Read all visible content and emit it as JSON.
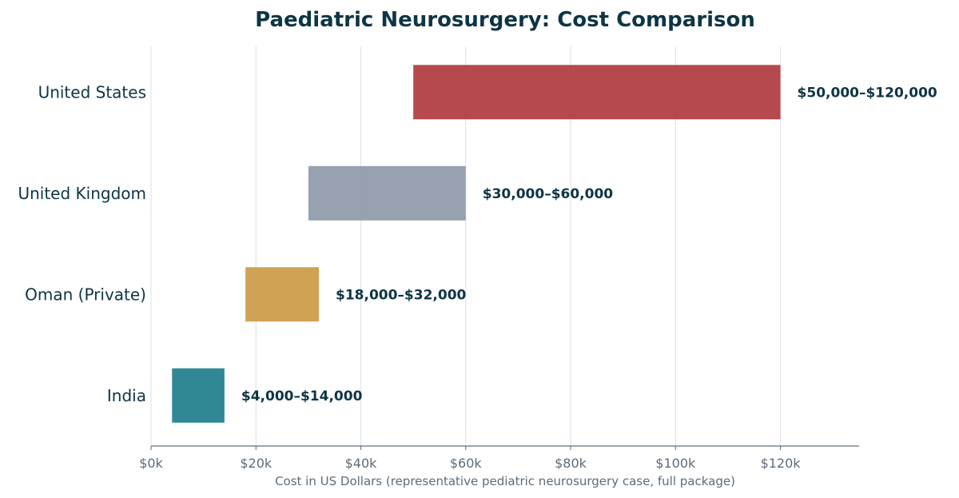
{
  "chart_data": {
    "type": "bar",
    "orientation": "horizontal",
    "title": "Paediatric Neurosurgery: Cost Comparison",
    "xlabel": "Cost in US Dollars (representative pediatric neurosurgery case, full package)",
    "ylabel": "",
    "xlim": [
      0,
      135000
    ],
    "x_ticks": [
      {
        "value": 0,
        "label": "$0k"
      },
      {
        "value": 20000,
        "label": "$20k"
      },
      {
        "value": 40000,
        "label": "$40k"
      },
      {
        "value": 60000,
        "label": "$60k"
      },
      {
        "value": 80000,
        "label": "$80k"
      },
      {
        "value": 100000,
        "label": "$100k"
      },
      {
        "value": 120000,
        "label": "$120k"
      }
    ],
    "grid": "vertical",
    "bars": [
      {
        "category": "United States",
        "low": 50000,
        "high": 120000,
        "label": "$50,000–$120,000",
        "color": "#b03a3e"
      },
      {
        "category": "United Kingdom",
        "low": 30000,
        "high": 60000,
        "label": "$30,000–$60,000",
        "color": "#8e99a9"
      },
      {
        "category": "Oman (Private)",
        "low": 18000,
        "high": 32000,
        "label": "$18,000–$32,000",
        "color": "#cc9a45"
      },
      {
        "category": "India",
        "low": 4000,
        "high": 14000,
        "label": "$4,000–$14,000",
        "color": "#1f7e8c"
      }
    ]
  }
}
